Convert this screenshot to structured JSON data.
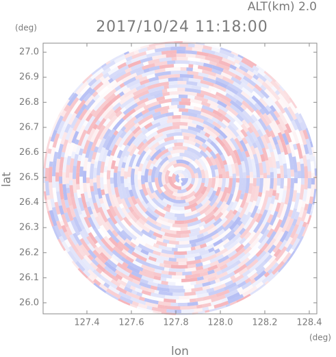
{
  "chart_data": {
    "type": "radar-ppi",
    "title": "2017/10/24 11:18:00",
    "altitude_label": "ALT(km) 2.0",
    "x_label": "lon",
    "x_unit": "(deg)",
    "y_label": "lat",
    "y_unit": "(deg)",
    "xlim": [
      127.203,
      128.434
    ],
    "ylim": [
      25.956,
      27.036
    ],
    "xticks": [
      127.4,
      127.6,
      127.8,
      {
        "value": 128,
        "label": "128.0"
      },
      128.2,
      128.4
    ],
    "yticks": [
      {
        "value": 26,
        "label": "26.0"
      },
      26.1,
      26.2,
      26.3,
      26.4,
      26.5,
      26.6,
      26.7,
      26.8,
      26.9,
      {
        "value": 27,
        "label": "27.0"
      }
    ],
    "colors": [
      "#f29aa2",
      "#9aa6f0"
    ]
  }
}
